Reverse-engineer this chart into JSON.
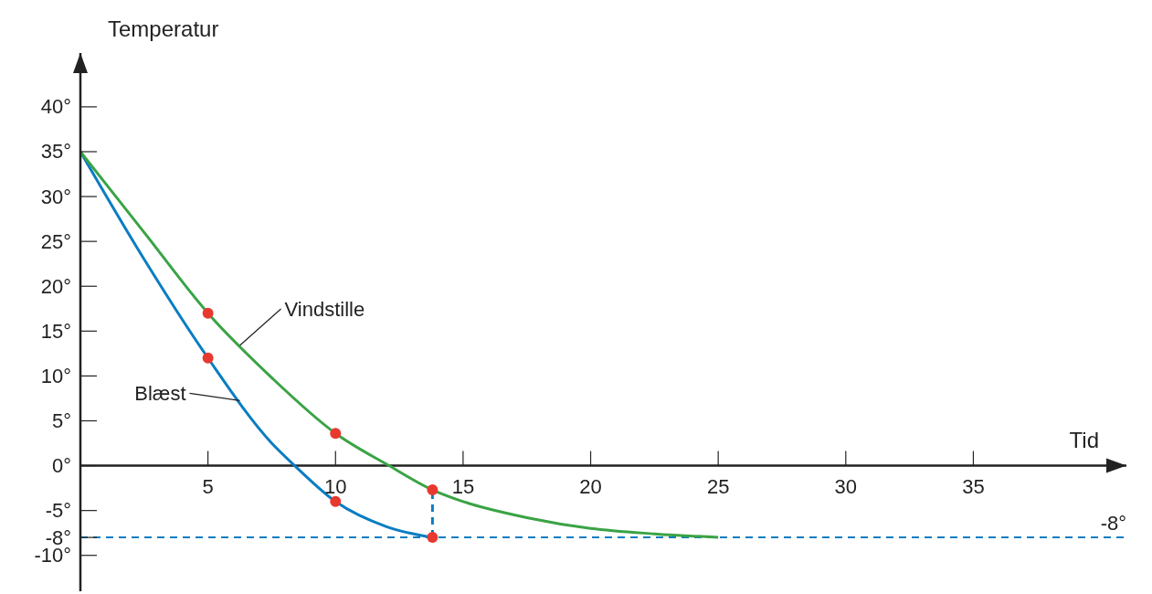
{
  "chart_data": {
    "type": "line",
    "xlabel": "Tid",
    "ylabel": "Temperatur",
    "xlim": [
      0,
      41
    ],
    "ylim": [
      -14,
      46
    ],
    "xticks": [
      5,
      10,
      15,
      20,
      25,
      30,
      35
    ],
    "yticks": [
      {
        "value": 40,
        "label": "40°"
      },
      {
        "value": 35,
        "label": "35°"
      },
      {
        "value": 30,
        "label": "30°"
      },
      {
        "value": 25,
        "label": "25°"
      },
      {
        "value": 20,
        "label": "20°"
      },
      {
        "value": 15,
        "label": "15°"
      },
      {
        "value": 10,
        "label": "10°"
      },
      {
        "value": 5,
        "label": "5°"
      },
      {
        "value": 0,
        "label": "0°"
      },
      {
        "value": -5,
        "label": "-5°"
      },
      {
        "value": -8,
        "label": "-8°"
      },
      {
        "value": -10,
        "label": "-10°"
      }
    ],
    "series": [
      {
        "name": "Blæst",
        "color": "#0a7dc2",
        "x": [
          0,
          2.5,
          5,
          7.5,
          8.4,
          10,
          12,
          13.8
        ],
        "values": [
          35,
          23,
          12,
          2.5,
          0,
          -4,
          -6.8,
          -8
        ]
      },
      {
        "name": "Vindstille",
        "color": "#3aa345",
        "x": [
          0,
          2.5,
          5,
          7.5,
          10,
          12.1,
          13.8,
          15,
          17.5,
          20,
          22.5,
          25
        ],
        "values": [
          35,
          26,
          17,
          9.8,
          3.6,
          0,
          -2.7,
          -4,
          -5.8,
          -7,
          -7.6,
          -8
        ]
      },
      {
        "type": "line",
        "line_style": "dashed",
        "color": "#0a7dc2",
        "x": [
          13.8,
          13.8
        ],
        "values": [
          -8,
          -2.7
        ]
      },
      {
        "type": "scatter",
        "marker": "circle",
        "color": "#e8392f",
        "x": [
          5,
          5,
          10,
          10,
          13.8,
          13.8
        ],
        "values": [
          17,
          12,
          3.6,
          -4,
          -2.7,
          -8
        ]
      }
    ],
    "ref_lines": [
      {
        "axis": "y",
        "value": -8,
        "label": "-8°",
        "color": "#0a7dc2",
        "line_style": "dashed"
      }
    ],
    "tick_labels": true
  }
}
